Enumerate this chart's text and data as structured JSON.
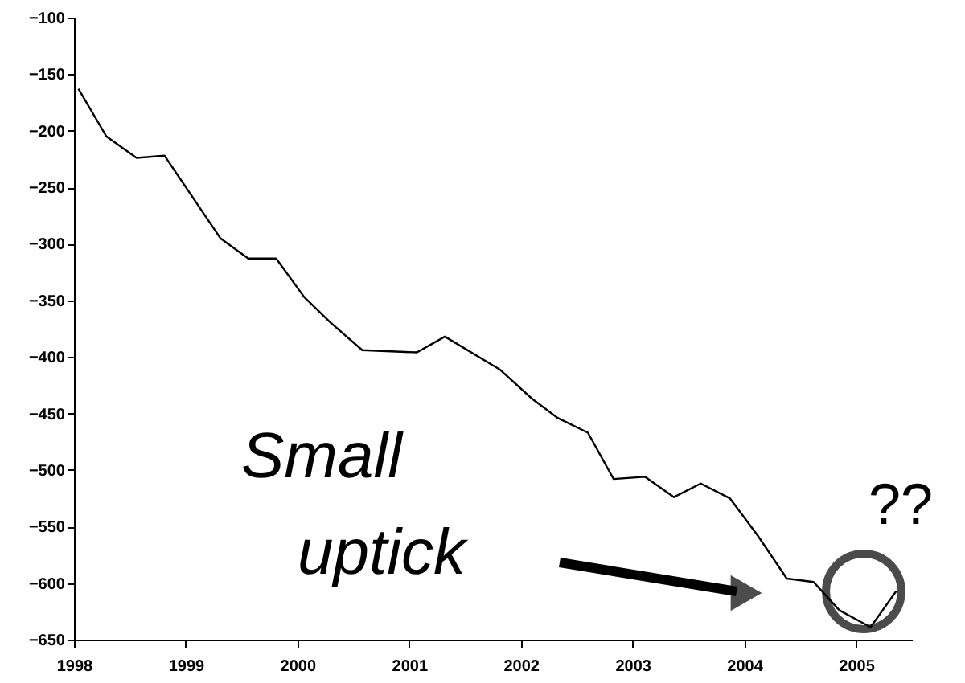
{
  "chart_data": {
    "type": "line",
    "x": [
      1998.04,
      1998.29,
      1998.56,
      1998.81,
      1999.31,
      1999.56,
      1999.81,
      2000.06,
      2000.29,
      2000.58,
      2001.07,
      2001.32,
      2001.81,
      2002.1,
      2002.33,
      2002.6,
      2002.83,
      2003.11,
      2003.37,
      2003.61,
      2003.87,
      2004.12,
      2004.38,
      2004.62,
      2004.85,
      2005.13,
      2005.36
    ],
    "series": [
      {
        "color": "#000000",
        "values": [
          -163,
          -205,
          -224,
          -222,
          -295,
          -313,
          -313,
          -347,
          -369,
          -394,
          -396,
          -382,
          -411,
          -437,
          -454,
          -467,
          -508,
          -506,
          -524,
          -512,
          -525,
          -558,
          -596,
          -599,
          -624,
          -639,
          -607
        ]
      }
    ],
    "xlim": [
      1998,
      2005.5
    ],
    "xticks": [
      1998,
      1999,
      2000,
      2001,
      2002,
      2003,
      2004,
      2005
    ],
    "ylim": [
      -650,
      -100
    ],
    "yticks": [
      -650,
      -600,
      -550,
      -500,
      -450,
      -400,
      -350,
      -300,
      -250,
      -200,
      -150,
      -100
    ],
    "grid": false,
    "marker": "none",
    "line_style": "solid",
    "annotations": [
      "Small uptick",
      "??"
    ]
  }
}
